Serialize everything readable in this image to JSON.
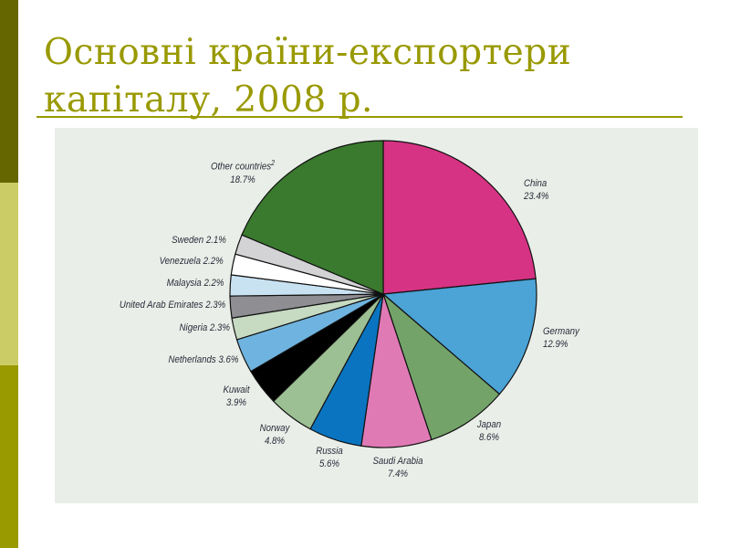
{
  "slide": {
    "title_line1": "Основні країни-експортери",
    "title_line2": "капіталу, 2008 р.",
    "sidebar_colors": [
      "#666600",
      "#cccc66",
      "#999900"
    ],
    "title_color": "#999900",
    "panel_background": "#e9efe8"
  },
  "chart_data": {
    "type": "pie",
    "title": "Основні країни-експортери капіталу, 2008 р.",
    "unit": "%",
    "start_angle_deg": 0,
    "direction": "clockwise",
    "slices": [
      {
        "label": "China",
        "value": 23.4,
        "display": "23.4%",
        "color": "#d63384"
      },
      {
        "label": "Germany",
        "value": 12.9,
        "display": "12.9%",
        "color": "#4ba3d6"
      },
      {
        "label": "Japan",
        "value": 8.6,
        "display": "8.6%",
        "color": "#74a36a"
      },
      {
        "label": "Saudi Arabia",
        "value": 7.4,
        "display": "7.4%",
        "color": "#e07ab5"
      },
      {
        "label": "Russia",
        "value": 5.6,
        "display": "5.6%",
        "color": "#0a74c0"
      },
      {
        "label": "Norway",
        "value": 4.8,
        "display": "4.8%",
        "color": "#9cbf94"
      },
      {
        "label": "Kuwait",
        "value": 3.9,
        "display": "3.9%",
        "color": "#000000"
      },
      {
        "label": "Netherlands",
        "value": 3.6,
        "display": "3.6%",
        "color": "#6fb4e0"
      },
      {
        "label": "Nigeria",
        "value": 2.3,
        "display": "2.3%",
        "color": "#c6dbc2"
      },
      {
        "label": "United Arab Emirates",
        "value": 2.3,
        "display": "2.3%",
        "color": "#8e8e93"
      },
      {
        "label": "Malaysia",
        "value": 2.2,
        "display": "2.2%",
        "color": "#c9e2f2"
      },
      {
        "label": "Venezuela",
        "value": 2.2,
        "display": "2.2%",
        "color": "#ffffff"
      },
      {
        "label": "Sweden",
        "value": 2.1,
        "display": "2.1%",
        "color": "#d3d3d6"
      },
      {
        "label": "Other countries",
        "footnote": "2",
        "value": 18.7,
        "display": "18.7%",
        "color": "#3a7a2e"
      }
    ]
  },
  "labels": {
    "china": {
      "name": "China",
      "value": "23.4%"
    },
    "germany": {
      "name": "Germany",
      "value": "12.9%"
    },
    "japan": {
      "name": "Japan",
      "value": "8.6%"
    },
    "saudi": {
      "name": "Saudi Arabia",
      "value": "7.4%"
    },
    "russia": {
      "name": "Russia",
      "value": "5.6%"
    },
    "norway": {
      "name": "Norway",
      "value": "4.8%"
    },
    "kuwait": {
      "name": "Kuwait",
      "value": "3.9%"
    },
    "netherlands": {
      "text": "Netherlands 3.6%"
    },
    "nigeria": {
      "text": "Nigeria 2.3%"
    },
    "uae": {
      "text": "United Arab Emirates 2.3%"
    },
    "malaysia": {
      "text": "Malaysia 2.2%"
    },
    "venezuela": {
      "text": "Venezuela 2.2%"
    },
    "sweden": {
      "text": "Sweden 2.1%"
    },
    "other": {
      "name": "Other countries",
      "footnote": "2",
      "value": "18.7%"
    }
  }
}
